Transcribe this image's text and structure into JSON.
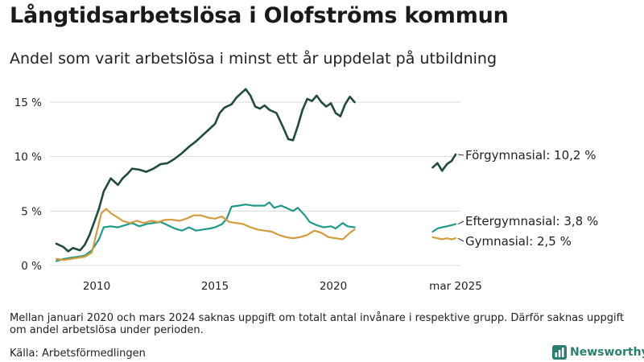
{
  "title": "Långtidsarbetslösa i Olofströms kommun",
  "subtitle": "Andel som varit arbetslösa i minst ett år uppdelat på utbildning",
  "note": "Mellan januari 2020 och mars 2024 saknas uppgift om totalt antal invånare i respektive grupp. Därför saknas uppgift om andel arbetslösa under perioden.",
  "source": "Källa: Arbetsförmedlingen",
  "logo": {
    "text": "Newsworthy"
  },
  "colors": {
    "forgymnasial": "#1f4a3e",
    "eftergymnasial": "#1f9a8a",
    "gymnasial": "#d49b3c",
    "grid": "#d9d9d9",
    "logo": "#2a8070"
  },
  "chart_data": {
    "type": "line",
    "y_ticks": [
      "0 %",
      "5 %",
      "10 %",
      "15 %"
    ],
    "y_tick_values": [
      0,
      5,
      10,
      15
    ],
    "ylim": [
      0,
      16.5
    ],
    "x_ticks": [
      "2010",
      "2015",
      "2020",
      "mar 2025"
    ],
    "x_tick_values": [
      2010,
      2015,
      2020,
      2025.17
    ],
    "xlim": [
      2008.2,
      2025.5
    ],
    "series": [
      {
        "name": "Förgymnasial",
        "end_label": "Förgymnasial: 10,2 %",
        "color": "#1f4a3e",
        "segments": [
          [
            [
              2008.3,
              2.0
            ],
            [
              2008.6,
              1.7
            ],
            [
              2008.8,
              1.3
            ],
            [
              2009.0,
              1.6
            ],
            [
              2009.3,
              1.4
            ],
            [
              2009.5,
              1.9
            ],
            [
              2009.7,
              2.8
            ],
            [
              2009.9,
              4.0
            ],
            [
              2010.1,
              5.2
            ],
            [
              2010.3,
              6.8
            ],
            [
              2010.6,
              8.0
            ],
            [
              2010.9,
              7.4
            ],
            [
              2011.1,
              8.0
            ],
            [
              2011.3,
              8.4
            ],
            [
              2011.5,
              8.9
            ],
            [
              2011.8,
              8.8
            ],
            [
              2012.1,
              8.6
            ],
            [
              2012.4,
              8.9
            ],
            [
              2012.7,
              9.3
            ],
            [
              2013.0,
              9.4
            ],
            [
              2013.3,
              9.8
            ],
            [
              2013.6,
              10.3
            ],
            [
              2013.9,
              10.9
            ],
            [
              2014.2,
              11.4
            ],
            [
              2014.5,
              12.0
            ],
            [
              2014.8,
              12.6
            ],
            [
              2015.0,
              13.0
            ],
            [
              2015.2,
              14.0
            ],
            [
              2015.4,
              14.5
            ],
            [
              2015.7,
              14.8
            ],
            [
              2015.9,
              15.4
            ],
            [
              2016.1,
              15.8
            ],
            [
              2016.3,
              16.2
            ],
            [
              2016.5,
              15.6
            ],
            [
              2016.7,
              14.6
            ],
            [
              2016.9,
              14.4
            ],
            [
              2017.1,
              14.7
            ],
            [
              2017.3,
              14.3
            ],
            [
              2017.6,
              14.0
            ],
            [
              2017.9,
              12.6
            ],
            [
              2018.1,
              11.6
            ],
            [
              2018.3,
              11.5
            ],
            [
              2018.5,
              12.8
            ],
            [
              2018.7,
              14.3
            ],
            [
              2018.9,
              15.3
            ],
            [
              2019.1,
              15.1
            ],
            [
              2019.3,
              15.6
            ],
            [
              2019.5,
              15.0
            ],
            [
              2019.7,
              14.6
            ],
            [
              2019.9,
              14.9
            ],
            [
              2020.1,
              14.0
            ],
            [
              2020.3,
              13.7
            ],
            [
              2020.5,
              14.8
            ],
            [
              2020.7,
              15.5
            ],
            [
              2020.9,
              15.0
            ]
          ],
          [
            [
              2024.2,
              9.0
            ],
            [
              2024.4,
              9.4
            ],
            [
              2024.6,
              8.7
            ],
            [
              2024.8,
              9.3
            ],
            [
              2025.0,
              9.6
            ],
            [
              2025.17,
              10.2
            ]
          ]
        ]
      },
      {
        "name": "Eftergymnasial",
        "end_label": "Eftergymnasial:  3,8 %",
        "color": "#1f9a8a",
        "segments": [
          [
            [
              2008.3,
              0.4
            ],
            [
              2008.6,
              0.6
            ],
            [
              2008.9,
              0.7
            ],
            [
              2009.2,
              0.8
            ],
            [
              2009.5,
              0.9
            ],
            [
              2009.8,
              1.4
            ],
            [
              2010.1,
              2.4
            ],
            [
              2010.3,
              3.5
            ],
            [
              2010.6,
              3.6
            ],
            [
              2010.9,
              3.5
            ],
            [
              2011.2,
              3.7
            ],
            [
              2011.5,
              3.9
            ],
            [
              2011.8,
              3.6
            ],
            [
              2012.1,
              3.8
            ],
            [
              2012.4,
              3.9
            ],
            [
              2012.7,
              4.0
            ],
            [
              2013.0,
              3.7
            ],
            [
              2013.3,
              3.4
            ],
            [
              2013.6,
              3.2
            ],
            [
              2013.9,
              3.5
            ],
            [
              2014.2,
              3.2
            ],
            [
              2014.5,
              3.3
            ],
            [
              2014.8,
              3.4
            ],
            [
              2015.0,
              3.5
            ],
            [
              2015.3,
              3.8
            ],
            [
              2015.5,
              4.3
            ],
            [
              2015.7,
              5.4
            ],
            [
              2016.0,
              5.5
            ],
            [
              2016.3,
              5.6
            ],
            [
              2016.6,
              5.5
            ],
            [
              2016.9,
              5.5
            ],
            [
              2017.1,
              5.5
            ],
            [
              2017.3,
              5.8
            ],
            [
              2017.5,
              5.3
            ],
            [
              2017.8,
              5.5
            ],
            [
              2018.0,
              5.3
            ],
            [
              2018.3,
              5.0
            ],
            [
              2018.5,
              5.3
            ],
            [
              2018.8,
              4.6
            ],
            [
              2019.0,
              4.0
            ],
            [
              2019.3,
              3.7
            ],
            [
              2019.6,
              3.5
            ],
            [
              2019.9,
              3.6
            ],
            [
              2020.1,
              3.4
            ],
            [
              2020.4,
              3.9
            ],
            [
              2020.6,
              3.6
            ],
            [
              2020.9,
              3.5
            ]
          ],
          [
            [
              2024.2,
              3.1
            ],
            [
              2024.4,
              3.4
            ],
            [
              2024.6,
              3.5
            ],
            [
              2024.8,
              3.6
            ],
            [
              2025.0,
              3.7
            ],
            [
              2025.17,
              3.8
            ]
          ]
        ]
      },
      {
        "name": "Gymnasial",
        "end_label": "Gymnasial:  2,5 %",
        "color": "#d49b3c",
        "segments": [
          [
            [
              2008.3,
              0.6
            ],
            [
              2008.6,
              0.5
            ],
            [
              2008.9,
              0.6
            ],
            [
              2009.2,
              0.7
            ],
            [
              2009.5,
              0.8
            ],
            [
              2009.8,
              1.2
            ],
            [
              2010.0,
              3.0
            ],
            [
              2010.2,
              4.8
            ],
            [
              2010.4,
              5.2
            ],
            [
              2010.6,
              4.8
            ],
            [
              2010.9,
              4.4
            ],
            [
              2011.1,
              4.1
            ],
            [
              2011.4,
              3.9
            ],
            [
              2011.7,
              4.1
            ],
            [
              2012.0,
              3.9
            ],
            [
              2012.3,
              4.1
            ],
            [
              2012.6,
              4.0
            ],
            [
              2012.9,
              4.2
            ],
            [
              2013.2,
              4.2
            ],
            [
              2013.5,
              4.1
            ],
            [
              2013.8,
              4.3
            ],
            [
              2014.1,
              4.6
            ],
            [
              2014.4,
              4.6
            ],
            [
              2014.7,
              4.4
            ],
            [
              2015.0,
              4.3
            ],
            [
              2015.3,
              4.5
            ],
            [
              2015.6,
              4.0
            ],
            [
              2015.9,
              3.9
            ],
            [
              2016.2,
              3.8
            ],
            [
              2016.5,
              3.5
            ],
            [
              2016.8,
              3.3
            ],
            [
              2017.1,
              3.2
            ],
            [
              2017.4,
              3.1
            ],
            [
              2017.7,
              2.8
            ],
            [
              2018.0,
              2.6
            ],
            [
              2018.3,
              2.5
            ],
            [
              2018.6,
              2.6
            ],
            [
              2018.9,
              2.8
            ],
            [
              2019.2,
              3.2
            ],
            [
              2019.5,
              3.0
            ],
            [
              2019.8,
              2.6
            ],
            [
              2020.1,
              2.5
            ],
            [
              2020.4,
              2.4
            ],
            [
              2020.7,
              3.0
            ],
            [
              2020.9,
              3.3
            ]
          ],
          [
            [
              2024.2,
              2.6
            ],
            [
              2024.4,
              2.5
            ],
            [
              2024.6,
              2.4
            ],
            [
              2024.8,
              2.5
            ],
            [
              2025.0,
              2.4
            ],
            [
              2025.17,
              2.5
            ]
          ]
        ]
      }
    ]
  }
}
